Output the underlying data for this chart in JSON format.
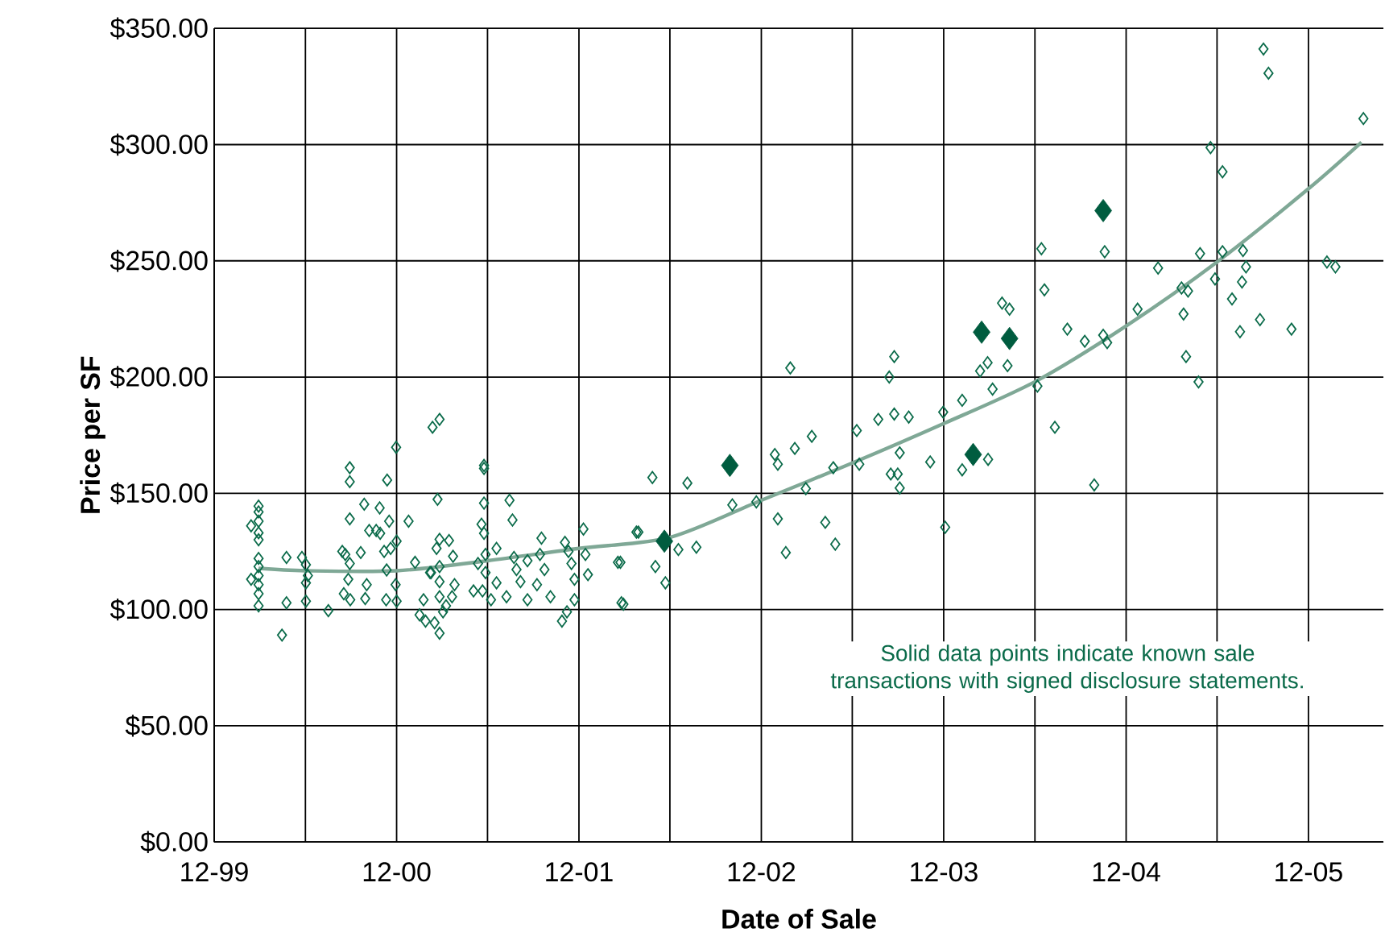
{
  "chart_data": {
    "type": "scatter",
    "xlabel": "Date of Sale",
    "ylabel": "Price per SF",
    "annotations": [
      "Solid data points indicate known sale transactions with signed disclosure statements."
    ],
    "xlim": [
      "1999-12-01",
      "2006-04-30"
    ],
    "ylim": [
      0,
      350
    ],
    "xticks": [
      {
        "value": "1999-12",
        "label": "12-99"
      },
      {
        "value": "2000-06",
        "label": null
      },
      {
        "value": "2000-12",
        "label": "12-00"
      },
      {
        "value": "2001-06",
        "label": null
      },
      {
        "value": "2001-12",
        "label": "12-01"
      },
      {
        "value": "2002-06",
        "label": null
      },
      {
        "value": "2002-12",
        "label": "12-02"
      },
      {
        "value": "2003-06",
        "label": null
      },
      {
        "value": "2003-12",
        "label": "12-03"
      },
      {
        "value": "2004-06",
        "label": null
      },
      {
        "value": "2004-12",
        "label": "12-04"
      },
      {
        "value": "2005-06",
        "label": null
      },
      {
        "value": "2005-12",
        "label": "12-05"
      }
    ],
    "yticks": [
      {
        "value": 0,
        "label": "$0.00"
      },
      {
        "value": 50,
        "label": "$50.00"
      },
      {
        "value": 100,
        "label": "$100.00"
      },
      {
        "value": 150,
        "label": "$150.00"
      },
      {
        "value": 200,
        "label": "$200.00"
      },
      {
        "value": 250,
        "label": "$250.00"
      },
      {
        "value": 300,
        "label": "$300.00"
      },
      {
        "value": 350,
        "label": "$350.00"
      }
    ],
    "grid": true,
    "series": [
      {
        "type": "line",
        "color": "#7fa896",
        "marker": "none",
        "x": [
          "2000-02-28",
          "2000-06-01",
          "2000-12-01",
          "2001-06-01",
          "2001-12-01",
          "2002-06-01",
          "2002-12-01",
          "2003-06-01",
          "2003-12-01",
          "2004-06-01",
          "2004-12-01",
          "2005-06-01",
          "2005-12-01",
          "2006-03-17"
        ],
        "values": [
          117.7,
          116.7,
          116.7,
          121,
          126.3,
          131,
          147,
          163,
          180,
          198,
          222,
          249.5,
          281,
          301
        ]
      },
      {
        "color": "#0b6b4a",
        "marker": "diamond",
        "x": [
          "2000-02-28",
          "2000-02-28",
          "2000-02-28",
          "2000-02-28",
          "2000-02-28",
          "2000-02-28",
          "2000-02-28",
          "2000-02-28",
          "2000-02-28",
          "2000-02-28",
          "2000-02-28",
          "2000-02-13",
          "2000-02-13",
          "2000-04-24",
          "2000-04-15",
          "2000-04-24",
          "2000-05-25",
          "2000-06-02",
          "2000-06-06",
          "2000-06-02",
          "2000-06-02",
          "2000-07-17",
          "2000-08-29",
          "2000-08-29",
          "2000-08-29",
          "2000-08-20",
          "2000-08-14",
          "2000-08-29",
          "2000-08-26",
          "2000-08-17",
          "2000-08-30",
          "2000-09-27",
          "2000-09-20",
          "2000-10-07",
          "2000-10-02",
          "2000-09-29",
          "2000-10-21",
          "2000-10-28",
          "2000-11-12",
          "2000-10-29",
          "2000-11-06",
          "2000-11-11",
          "2000-11-16",
          "2000-11-19",
          "2000-11-30",
          "2000-12-01",
          "2000-11-29",
          "2000-12-01",
          "2000-11-10",
          "2000-12-25",
          "2001-01-07",
          "2001-01-16",
          "2001-01-24",
          "2001-01-28",
          "2001-02-08",
          "2001-02-11",
          "2001-02-25",
          "2001-02-21",
          "2001-02-19",
          "2001-02-25",
          "2001-02-25",
          "2001-02-25",
          "2001-02-25",
          "2001-02-25",
          "2001-02-15",
          "2001-03-04",
          "2001-02-06",
          "2001-03-16",
          "2001-03-24",
          "2001-03-27",
          "2001-03-10",
          "2001-03-22",
          "2001-05-25",
          "2001-05-25",
          "2001-05-25",
          "2001-05-20",
          "2001-05-25",
          "2001-05-13",
          "2001-05-28",
          "2001-05-28",
          "2001-05-22",
          "2001-06-08",
          "2001-06-19",
          "2001-06-19",
          "2001-05-04",
          "2001-07-15",
          "2001-07-21",
          "2001-07-24",
          "2001-07-29",
          "2001-07-09",
          "2001-08-06",
          "2001-08-20",
          "2001-08-20",
          "2001-09-17",
          "2001-09-14",
          "2001-09-23",
          "2001-09-08",
          "2001-10-05",
          "2001-10-28",
          "2001-11-07",
          "2001-11-03",
          "2001-11-16",
          "2001-11-22",
          "2001-11-22",
          "2001-12-10",
          "2001-12-14",
          "2001-12-19",
          "2001-11-10",
          "2002-02-17",
          "2002-02-24",
          "2002-03-26",
          "2002-02-22",
          "2002-02-28",
          "2002-03-30",
          "2002-04-27",
          "2002-05-03",
          "2002-05-23",
          "2002-06-18",
          "2002-07-06",
          "2002-07-24",
          "2002-10-04",
          "2002-11-21",
          "2002-12-28",
          "2003-01-03",
          "2003-01-03",
          "2003-01-19",
          "2003-01-28",
          "2003-02-06",
          "2003-02-28",
          "2003-03-12",
          "2003-04-08",
          "2003-04-24",
          "2003-04-28",
          "2003-06-10",
          "2003-06-15",
          "2003-07-23",
          "2003-08-14",
          "2003-08-24",
          "2003-08-24",
          "2003-09-04",
          "2003-08-17",
          "2003-08-31",
          "2003-09-04",
          "2003-09-22",
          "2003-11-04",
          "2003-11-30",
          "2003-12-04",
          "2004-01-07",
          "2004-01-07",
          "2004-02-12",
          "2004-02-27",
          "2004-02-28",
          "2004-03-08",
          "2004-03-27",
          "2004-04-11",
          "2004-04-07",
          "2004-06-06",
          "2004-06-14",
          "2004-06-20",
          "2004-07-11",
          "2004-08-05",
          "2004-09-09",
          "2004-09-28",
          "2004-10-19",
          "2004-10-16",
          "2004-10-24",
          "2004-12-24",
          "2005-02-03",
          "2005-03-22",
          "2005-04-04",
          "2005-03-26",
          "2005-03-31",
          "2005-04-25",
          "2005-04-28",
          "2005-05-19",
          "2005-05-28",
          "2005-06-12",
          "2005-06-12",
          "2005-07-01",
          "2005-07-17",
          "2005-07-21",
          "2005-07-23",
          "2005-07-29",
          "2005-08-26",
          "2005-09-02",
          "2005-09-12",
          "2005-10-28",
          "2006-01-07",
          "2006-01-24",
          "2006-03-21"
        ],
        "values": [
          144.5,
          142,
          138,
          133,
          130,
          122,
          118.5,
          114.6,
          110.7,
          106.8,
          101.6,
          113,
          136,
          102.9,
          89,
          122.4,
          122.4,
          119.3,
          114.6,
          111.5,
          103.6,
          99.5,
          161,
          155,
          139,
          123.7,
          125,
          119.8,
          113,
          106.8,
          104.2,
          145.3,
          124.5,
          134,
          110.7,
          104.7,
          134,
          143.7,
          155.7,
          132.8,
          125,
          117,
          138,
          126.3,
          169.8,
          129.4,
          110.7,
          103.6,
          104.2,
          138,
          120.3,
          97.7,
          104.2,
          95,
          115.9,
          178.4,
          181.8,
          147.4,
          126.3,
          130.2,
          118.5,
          112,
          105.5,
          89.8,
          94.3,
          99,
          115.9,
          129.7,
          122.9,
          110.7,
          101.6,
          105.5,
          162,
          160.7,
          145.8,
          136.7,
          132.8,
          119.8,
          123.7,
          115.9,
          108,
          104.2,
          126.3,
          111.5,
          108,
          147,
          138.5,
          122.4,
          117.2,
          105.5,
          112,
          104.2,
          121,
          130.7,
          123.7,
          117.2,
          110.7,
          105.5,
          95,
          99,
          128.9,
          119.8,
          113,
          104.2,
          134.6,
          123.7,
          115,
          125,
          120.3,
          102.9,
          133.3,
          120.3,
          102.3,
          133.3,
          156.8,
          118.5,
          111.5,
          125.8,
          154.4,
          126.8,
          145,
          146.3,
          166.7,
          162.5,
          139,
          124.5,
          203.9,
          169.3,
          152,
          174.5,
          137.5,
          161,
          128.1,
          177,
          162.5,
          181.8,
          200,
          208.8,
          184.1,
          167.4,
          158.3,
          158.3,
          152.3,
          182.8,
          163.5,
          184.9,
          135.4,
          160.1,
          190,
          202.6,
          206.2,
          164.6,
          194.8,
          231.8,
          229.2,
          204.9,
          196.1,
          255.2,
          237.5,
          178.4,
          220.6,
          215.4,
          153.6,
          253.9,
          218,
          214.8,
          229.2,
          246.9,
          238.3,
          237,
          227.1,
          208.8,
          197.9,
          253.1,
          298.7,
          242.2,
          288.3,
          253.9,
          233.6,
          219.5,
          240.9,
          254.4,
          247.4,
          224.7,
          341.1,
          330.7,
          220.6,
          249.5,
          247.4,
          311.2
        ]
      },
      {
        "color": "#005c3f",
        "marker": "diamond",
        "x": [
          "2002-05-21",
          "2002-09-29",
          "2004-01-29",
          "2004-02-15",
          "2004-04-11",
          "2004-10-16"
        ],
        "values": [
          129.4,
          162,
          166.7,
          219.3,
          216.6,
          271.6
        ]
      }
    ]
  }
}
